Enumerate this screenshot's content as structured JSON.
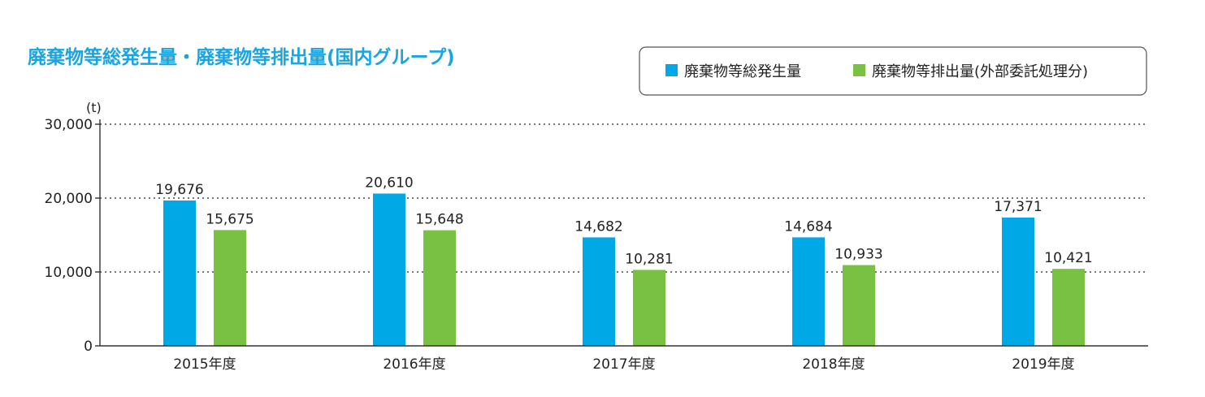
{
  "chart_data": {
    "type": "bar",
    "title": "廃棄物等総発生量・廃棄物等排出量(国内グループ)",
    "unit": "(t)",
    "categories": [
      "2015年度",
      "2016年度",
      "2017年度",
      "2018年度",
      "2019年度"
    ],
    "series": [
      {
        "name": "廃棄物等総発生量",
        "color": "#00a8e6",
        "values": [
          19676,
          20610,
          14682,
          14684,
          17371
        ],
        "labels": [
          "19,676",
          "20,610",
          "14,682",
          "14,684",
          "17,371"
        ]
      },
      {
        "name": "廃棄物等排出量(外部委託処理分)",
        "color": "#79c143",
        "values": [
          15675,
          15648,
          10281,
          10933,
          10421
        ],
        "labels": [
          "15,675",
          "15,648",
          "10,281",
          "10,933",
          "10,421"
        ]
      }
    ],
    "yticks": [
      0,
      10000,
      20000,
      30000
    ],
    "ytick_labels": [
      "0",
      "10,000",
      "20,000",
      "30,000"
    ],
    "ylim": [
      0,
      30000
    ],
    "grid": true,
    "legend_position": "top-right"
  }
}
